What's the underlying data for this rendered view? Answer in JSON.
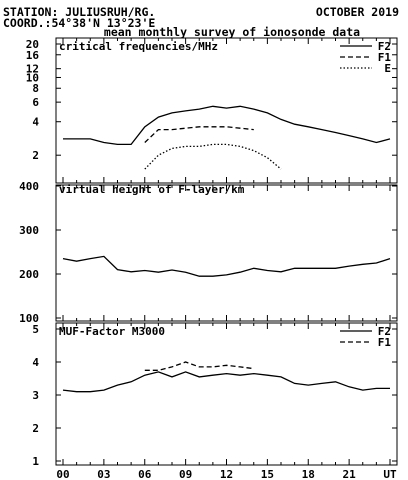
{
  "header": {
    "station": "STATION: JULIUSRUH/RG.",
    "date": "OCTOBER 2019",
    "coord": "COORD.:54°38'N 13°23'E",
    "subtitle": "mean monthly survey of ionosonde data"
  },
  "x_tick_labels": [
    "00",
    "03",
    "06",
    "09",
    "12",
    "15",
    "18",
    "21",
    "UT"
  ],
  "chart_data": [
    {
      "type": "line",
      "title": "critical frequencies/MHz",
      "yscale": "log",
      "ylim": [
        1.3,
        20
      ],
      "yticks": [
        2,
        4,
        6,
        8,
        10,
        12,
        16,
        20
      ],
      "xlim": [
        0,
        24
      ],
      "legend": "top-right",
      "series": [
        {
          "name": "F2",
          "style": "solid",
          "x": [
            0,
            1,
            2,
            3,
            4,
            5,
            6,
            7,
            8,
            9,
            10,
            11,
            12,
            13,
            14,
            15,
            16,
            17,
            18,
            19,
            20,
            21,
            22,
            23,
            24
          ],
          "values": [
            2.8,
            2.8,
            2.8,
            2.6,
            2.5,
            2.5,
            3.6,
            4.4,
            4.8,
            5.0,
            5.2,
            5.5,
            5.3,
            5.5,
            5.2,
            4.8,
            4.2,
            3.8,
            3.6,
            3.4,
            3.2,
            3.0,
            2.8,
            2.6,
            2.8
          ]
        },
        {
          "name": "F1",
          "style": "dashed",
          "x": [
            6,
            7,
            8,
            9,
            10,
            11,
            12,
            13,
            14
          ],
          "values": [
            2.6,
            3.4,
            3.4,
            3.5,
            3.6,
            3.6,
            3.6,
            3.5,
            3.4
          ]
        },
        {
          "name": "E",
          "style": "dotted",
          "x": [
            6,
            7,
            8,
            9,
            10,
            11,
            12,
            13,
            14,
            15,
            16
          ],
          "values": [
            1.5,
            2.0,
            2.3,
            2.4,
            2.4,
            2.5,
            2.5,
            2.4,
            2.2,
            1.9,
            1.5
          ]
        }
      ]
    },
    {
      "type": "line",
      "title": "virtual height of F-layer/km",
      "ylim": [
        100,
        400
      ],
      "yticks": [
        100,
        200,
        300,
        400
      ],
      "xlim": [
        0,
        24
      ],
      "series": [
        {
          "style": "solid",
          "x": [
            0,
            1,
            2,
            3,
            4,
            5,
            6,
            7,
            8,
            9,
            10,
            11,
            12,
            13,
            14,
            15,
            16,
            17,
            18,
            19,
            20,
            21,
            22,
            23,
            24
          ],
          "values": [
            235,
            229,
            235,
            240,
            210,
            205,
            208,
            204,
            209,
            204,
            195,
            195,
            198,
            204,
            213,
            208,
            205,
            213,
            213,
            213,
            213,
            218,
            222,
            225,
            235
          ]
        }
      ]
    },
    {
      "type": "line",
      "title": "MUF-Factor M3000",
      "ylim": [
        1,
        5
      ],
      "yticks": [
        1,
        2,
        3,
        4,
        5
      ],
      "xlim": [
        0,
        24
      ],
      "legend": "top-right",
      "series": [
        {
          "name": "F2",
          "style": "solid",
          "x": [
            0,
            1,
            2,
            3,
            4,
            5,
            6,
            7,
            8,
            9,
            10,
            11,
            12,
            13,
            14,
            15,
            16,
            17,
            18,
            19,
            20,
            21,
            22,
            23,
            24
          ],
          "values": [
            3.15,
            3.1,
            3.1,
            3.15,
            3.3,
            3.4,
            3.6,
            3.7,
            3.55,
            3.7,
            3.55,
            3.6,
            3.65,
            3.6,
            3.65,
            3.6,
            3.55,
            3.35,
            3.3,
            3.35,
            3.4,
            3.25,
            3.15,
            3.2,
            3.2
          ]
        },
        {
          "name": "F1",
          "style": "dashed",
          "x": [
            6,
            7,
            8,
            9,
            10,
            11,
            12,
            13,
            14
          ],
          "values": [
            3.75,
            3.75,
            3.85,
            4.0,
            3.85,
            3.85,
            3.9,
            3.85,
            3.8
          ]
        }
      ]
    }
  ]
}
